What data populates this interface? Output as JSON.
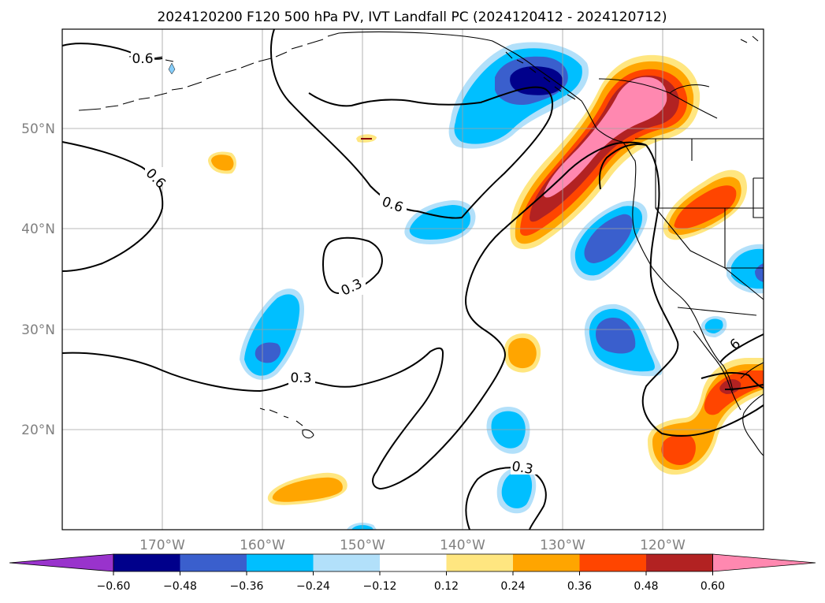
{
  "title": "2024120200 F120 500 hPa PV, IVT Landfall PC (2024120412 - 2024120712)",
  "map": {
    "lon_labels": [
      "170°W",
      "160°W",
      "150°W",
      "140°W",
      "130°W",
      "120°W"
    ],
    "lat_labels": [
      "50°N",
      "40°N",
      "30°N",
      "20°N"
    ],
    "contour_labels": [
      "0.6",
      "0.6",
      "0.6",
      "0.3",
      "0.3",
      "0.3",
      "6"
    ]
  },
  "colorbar": {
    "ticks": [
      "−0.60",
      "−0.48",
      "−0.36",
      "−0.24",
      "−0.12",
      "0.12",
      "0.24",
      "0.36",
      "0.48",
      "0.60"
    ],
    "colors": {
      "under": "#9933cc",
      "c1": "#00008b",
      "c2": "#3a5fcd",
      "c3": "#00bfff",
      "c4": "#b2e0fa",
      "c5": "#ffffff",
      "c6": "#ffe680",
      "c7": "#ffa500",
      "c8": "#ff4500",
      "c9": "#b22222",
      "over": "#ff88b0"
    }
  }
}
